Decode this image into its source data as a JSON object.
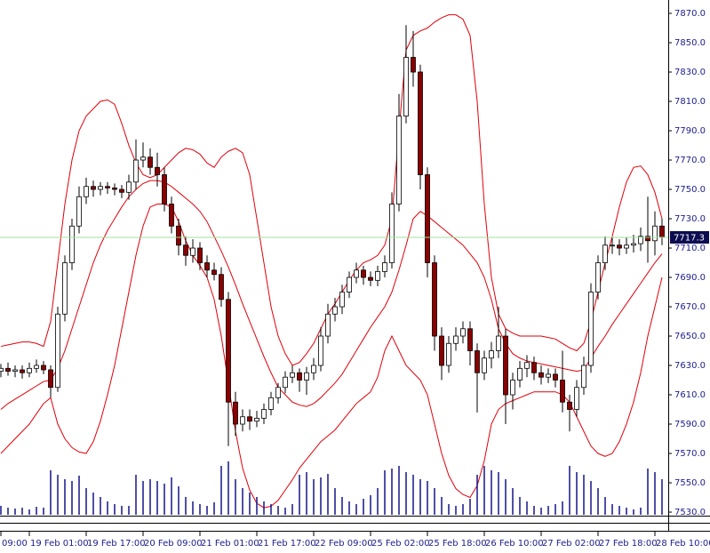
{
  "chart_data": {
    "type": "candlestick",
    "ylim": [
      7528.8,
      7879.1
    ],
    "yticks": [
      {
        "value": 7530,
        "label": "7530.0"
      },
      {
        "value": 7550,
        "label": "7550.0"
      },
      {
        "value": 7570,
        "label": "7570.0"
      },
      {
        "value": 7590,
        "label": "7590.0"
      },
      {
        "value": 7610,
        "label": "7610.0"
      },
      {
        "value": 7630,
        "label": "7630.0"
      },
      {
        "value": 7650,
        "label": "7650.0"
      },
      {
        "value": 7670,
        "label": "7670.0"
      },
      {
        "value": 7690,
        "label": "7690.0"
      },
      {
        "value": 7710,
        "label": "7710.0"
      },
      {
        "value": 7730,
        "label": "7730.0"
      },
      {
        "value": 7750,
        "label": "7750.0"
      },
      {
        "value": 7770,
        "label": "7770.0"
      },
      {
        "value": 7790,
        "label": "7790.0"
      },
      {
        "value": 7810,
        "label": "7810.0"
      },
      {
        "value": 7830,
        "label": "7830.0"
      },
      {
        "value": 7850,
        "label": "7850.0"
      },
      {
        "value": 7870,
        "label": "7870.0"
      }
    ],
    "categories": [
      "09:00",
      null,
      null,
      null,
      "19 Feb 01:00",
      null,
      null,
      null,
      null,
      null,
      null,
      null,
      "19 Feb 17:00",
      null,
      null,
      null,
      null,
      null,
      null,
      null,
      "20 Feb 09:00",
      null,
      null,
      null,
      null,
      null,
      null,
      null,
      "21 Feb 01:00",
      null,
      null,
      null,
      null,
      null,
      null,
      null,
      "21 Feb 17:00",
      null,
      null,
      null,
      null,
      null,
      null,
      null,
      "22 Feb 09:00",
      null,
      null,
      null,
      null,
      null,
      null,
      null,
      "25 Feb 02:00",
      null,
      null,
      null,
      null,
      null,
      null,
      null,
      "25 Feb 18:00",
      null,
      null,
      null,
      null,
      null,
      null,
      null,
      "26 Feb 10:00",
      null,
      null,
      null,
      null,
      null,
      null,
      null,
      "27 Feb 02:00",
      null,
      null,
      null,
      null,
      null,
      null,
      null,
      "27 Feb 18:00",
      null,
      null,
      null,
      null,
      null,
      null,
      null,
      "28 Feb 10:00",
      null
    ],
    "open": [
      7626,
      7628,
      7626,
      7627,
      7625,
      7628,
      7630,
      7627,
      7615,
      7665,
      7700,
      7725,
      7745,
      7752,
      7750,
      7752,
      7751,
      7750,
      7748,
      7755,
      7770,
      7772,
      7765,
      7760,
      7740,
      7725,
      7712,
      7705,
      7710,
      7700,
      7695,
      7692,
      7675,
      7605,
      7590,
      7595,
      7592,
      7594,
      7600,
      7608,
      7615,
      7622,
      7625,
      7620,
      7625,
      7630,
      7650,
      7665,
      7670,
      7680,
      7690,
      7695,
      7690,
      7688,
      7694,
      7700,
      7740,
      7800,
      7840,
      7830,
      7760,
      7700,
      7650,
      7630,
      7645,
      7650,
      7655,
      7640,
      7625,
      7635,
      7640,
      7650,
      7610,
      7620,
      7628,
      7632,
      7625,
      7622,
      7624,
      7620,
      7605,
      7600,
      7615,
      7630,
      7680,
      7700,
      7712,
      7712,
      7710,
      7712,
      7713,
      7718,
      7715,
      7725
    ],
    "high": [
      7631,
      7632,
      7630,
      7630,
      7632,
      7634,
      7633,
      7630,
      7670,
      7705,
      7730,
      7752,
      7758,
      7756,
      7755,
      7755,
      7754,
      7753,
      7760,
      7784,
      7782,
      7778,
      7775,
      7765,
      7745,
      7730,
      7718,
      7716,
      7714,
      7705,
      7700,
      7697,
      7680,
      7612,
      7600,
      7600,
      7599,
      7604,
      7612,
      7618,
      7626,
      7630,
      7628,
      7629,
      7635,
      7656,
      7672,
      7676,
      7685,
      7694,
      7700,
      7698,
      7694,
      7698,
      7705,
      7748,
      7815,
      7862,
      7858,
      7835,
      7765,
      7705,
      7656,
      7650,
      7656,
      7660,
      7660,
      7645,
      7640,
      7646,
      7670,
      7655,
      7625,
      7633,
      7637,
      7636,
      7630,
      7628,
      7628,
      7640,
      7610,
      7620,
      7636,
      7686,
      7705,
      7718,
      7717,
      7716,
      7717,
      7719,
      7724,
      7745,
      7735,
      7730
    ],
    "low": [
      7622,
      7623,
      7622,
      7621,
      7622,
      7625,
      7624,
      7608,
      7612,
      7660,
      7695,
      7720,
      7740,
      7745,
      7746,
      7747,
      7746,
      7744,
      7743,
      7750,
      7765,
      7760,
      7752,
      7735,
      7720,
      7705,
      7698,
      7700,
      7695,
      7690,
      7688,
      7670,
      7575,
      7582,
      7585,
      7586,
      7588,
      7590,
      7596,
      7604,
      7611,
      7618,
      7612,
      7610,
      7620,
      7626,
      7645,
      7660,
      7665,
      7676,
      7686,
      7685,
      7684,
      7684,
      7690,
      7696,
      7735,
      7795,
      7820,
      7750,
      7690,
      7640,
      7620,
      7625,
      7640,
      7645,
      7630,
      7598,
      7620,
      7628,
      7635,
      7590,
      7600,
      7615,
      7622,
      7620,
      7617,
      7618,
      7615,
      7598,
      7585,
      7595,
      7610,
      7625,
      7675,
      7695,
      7706,
      7705,
      7706,
      7707,
      7708,
      7700,
      7705,
      7712
    ],
    "close": [
      7628,
      7626,
      7627,
      7625,
      7628,
      7630,
      7627,
      7615,
      7665,
      7700,
      7725,
      7745,
      7752,
      7750,
      7752,
      7751,
      7750,
      7748,
      7755,
      7770,
      7772,
      7765,
      7760,
      7740,
      7725,
      7712,
      7705,
      7710,
      7700,
      7695,
      7692,
      7675,
      7605,
      7590,
      7595,
      7592,
      7594,
      7600,
      7608,
      7615,
      7622,
      7625,
      7620,
      7625,
      7630,
      7650,
      7665,
      7670,
      7680,
      7690,
      7695,
      7690,
      7688,
      7694,
      7700,
      7740,
      7800,
      7840,
      7830,
      7760,
      7700,
      7650,
      7630,
      7645,
      7650,
      7655,
      7640,
      7625,
      7635,
      7640,
      7650,
      7610,
      7620,
      7628,
      7632,
      7625,
      7622,
      7624,
      7620,
      7605,
      7600,
      7615,
      7630,
      7680,
      7700,
      7712,
      7712,
      7710,
      7712,
      7713,
      7718,
      7715,
      7725,
      7717.3
    ],
    "volume": [
      10,
      8,
      7,
      8,
      6,
      9,
      8,
      50,
      45,
      40,
      38,
      44,
      30,
      25,
      20,
      15,
      12,
      10,
      10,
      45,
      38,
      40,
      38,
      35,
      42,
      32,
      20,
      15,
      12,
      10,
      14,
      55,
      60,
      40,
      30,
      25,
      20,
      15,
      12,
      10,
      8,
      12,
      45,
      48,
      40,
      42,
      46,
      30,
      20,
      15,
      12,
      18,
      22,
      30,
      50,
      52,
      55,
      48,
      45,
      40,
      38,
      30,
      20,
      12,
      10,
      12,
      18,
      45,
      55,
      50,
      48,
      40,
      30,
      20,
      15,
      10,
      8,
      10,
      12,
      15,
      55,
      48,
      45,
      38,
      30,
      20,
      12,
      10,
      8,
      6,
      8,
      52,
      48,
      40
    ],
    "bands": {
      "color": "#e0000a",
      "upper": [
        7643,
        7644,
        7645,
        7646,
        7646,
        7645,
        7643,
        7660,
        7700,
        7740,
        7770,
        7790,
        7800,
        7805,
        7810,
        7811,
        7808,
        7795,
        7780,
        7768,
        7760,
        7758,
        7760,
        7765,
        7770,
        7775,
        7778,
        7777,
        7774,
        7768,
        7765,
        7772,
        7776,
        7778,
        7775,
        7760,
        7730,
        7700,
        7670,
        7650,
        7638,
        7630,
        7632,
        7638,
        7645,
        7655,
        7665,
        7672,
        7680,
        7688,
        7695,
        7700,
        7702,
        7705,
        7712,
        7730,
        7790,
        7845,
        7855,
        7858,
        7860,
        7864,
        7867,
        7869,
        7869,
        7866,
        7855,
        7810,
        7740,
        7690,
        7665,
        7655,
        7652,
        7650,
        7650,
        7650,
        7650,
        7649,
        7648,
        7645,
        7642,
        7640,
        7645,
        7660,
        7680,
        7700,
        7718,
        7738,
        7755,
        7765,
        7766,
        7760,
        7748,
        7730
      ],
      "middle": [
        7600,
        7604,
        7607,
        7610,
        7613,
        7616,
        7619,
        7620,
        7628,
        7640,
        7655,
        7670,
        7685,
        7700,
        7712,
        7722,
        7730,
        7738,
        7745,
        7750,
        7754,
        7756,
        7756,
        7755,
        7752,
        7748,
        7744,
        7740,
        7735,
        7728,
        7718,
        7708,
        7697,
        7685,
        7672,
        7660,
        7648,
        7636,
        7625,
        7615,
        7610,
        7605,
        7603,
        7602,
        7604,
        7608,
        7613,
        7618,
        7624,
        7632,
        7640,
        7648,
        7656,
        7663,
        7670,
        7680,
        7695,
        7712,
        7730,
        7735,
        7732,
        7728,
        7724,
        7720,
        7716,
        7712,
        7706,
        7700,
        7690,
        7675,
        7655,
        7645,
        7638,
        7635,
        7633,
        7632,
        7631,
        7630,
        7629,
        7628,
        7627,
        7626,
        7627,
        7635,
        7643,
        7650,
        7658,
        7665,
        7672,
        7679,
        7686,
        7693,
        7700,
        7706
      ],
      "lower": [
        7570,
        7575,
        7580,
        7585,
        7590,
        7597,
        7604,
        7608,
        7590,
        7580,
        7574,
        7571,
        7570,
        7578,
        7592,
        7610,
        7630,
        7655,
        7680,
        7705,
        7725,
        7738,
        7740,
        7740,
        7738,
        7728,
        7715,
        7705,
        7698,
        7690,
        7675,
        7650,
        7618,
        7585,
        7560,
        7545,
        7536,
        7533,
        7534,
        7538,
        7545,
        7552,
        7560,
        7566,
        7572,
        7578,
        7582,
        7586,
        7592,
        7598,
        7604,
        7608,
        7612,
        7622,
        7640,
        7650,
        7640,
        7630,
        7625,
        7620,
        7610,
        7590,
        7570,
        7555,
        7546,
        7542,
        7540,
        7548,
        7565,
        7590,
        7600,
        7604,
        7606,
        7608,
        7610,
        7612,
        7612,
        7612,
        7612,
        7610,
        7605,
        7595,
        7585,
        7575,
        7570,
        7568,
        7570,
        7578,
        7590,
        7605,
        7625,
        7650,
        7670,
        7690
      ]
    },
    "up_color": "#ffffff",
    "down_color": "#8b0000",
    "volume_color": "#14148c",
    "last_price": 7717.3,
    "price_line_color": "#9fe09f"
  }
}
